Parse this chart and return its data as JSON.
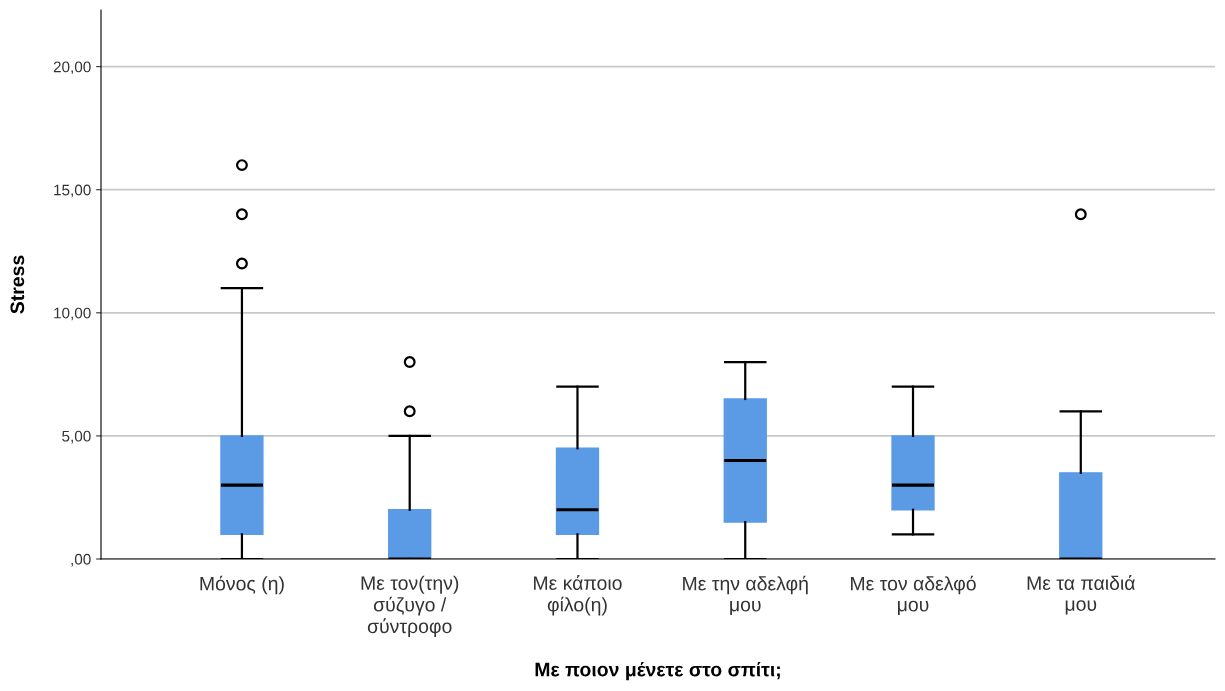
{
  "chart_data": {
    "type": "box",
    "xlabel": "Με ποιον μένετε στο σπίτι;",
    "ylabel": "Stress",
    "categories": [
      "Μόνος (η)",
      "Με τον(την)\nσύζυγο /\nσύντροφο",
      "Με κάποιο\nφίλο(η)",
      "Με την αδελφή\nμου",
      "Με τον αδελφό\nμου",
      "Με τα παιδιά\nμου"
    ],
    "series": [
      {
        "color": "#5b9be6",
        "boxes": [
          {
            "low": 0,
            "q1": 1,
            "median": 3,
            "q3": 5,
            "high": 11,
            "outliers": [
              12,
              14,
              16
            ]
          },
          {
            "low": 0,
            "q1": 0,
            "median": 0,
            "q3": 2,
            "high": 5,
            "outliers": [
              6,
              8
            ]
          },
          {
            "low": 0,
            "q1": 1,
            "median": 2,
            "q3": 4.5,
            "high": 7
          },
          {
            "low": 0,
            "q1": 1.5,
            "median": 4,
            "q3": 6.5,
            "high": 8
          },
          {
            "low": 1,
            "q1": 2,
            "median": 3,
            "q3": 5,
            "high": 7
          },
          {
            "low": 0,
            "q1": 0,
            "median": 0,
            "q3": 3.5,
            "high": 6,
            "outliers": [
              14
            ]
          }
        ]
      }
    ],
    "ylim": [
      0,
      22.3
    ],
    "yticks": [
      {
        "value": 0,
        "label": ",00"
      },
      {
        "value": 5,
        "label": "5,00"
      },
      {
        "value": 10,
        "label": "10,00"
      },
      {
        "value": 15,
        "label": "15,00"
      },
      {
        "value": 20,
        "label": "20,00"
      }
    ],
    "grid": "y"
  }
}
